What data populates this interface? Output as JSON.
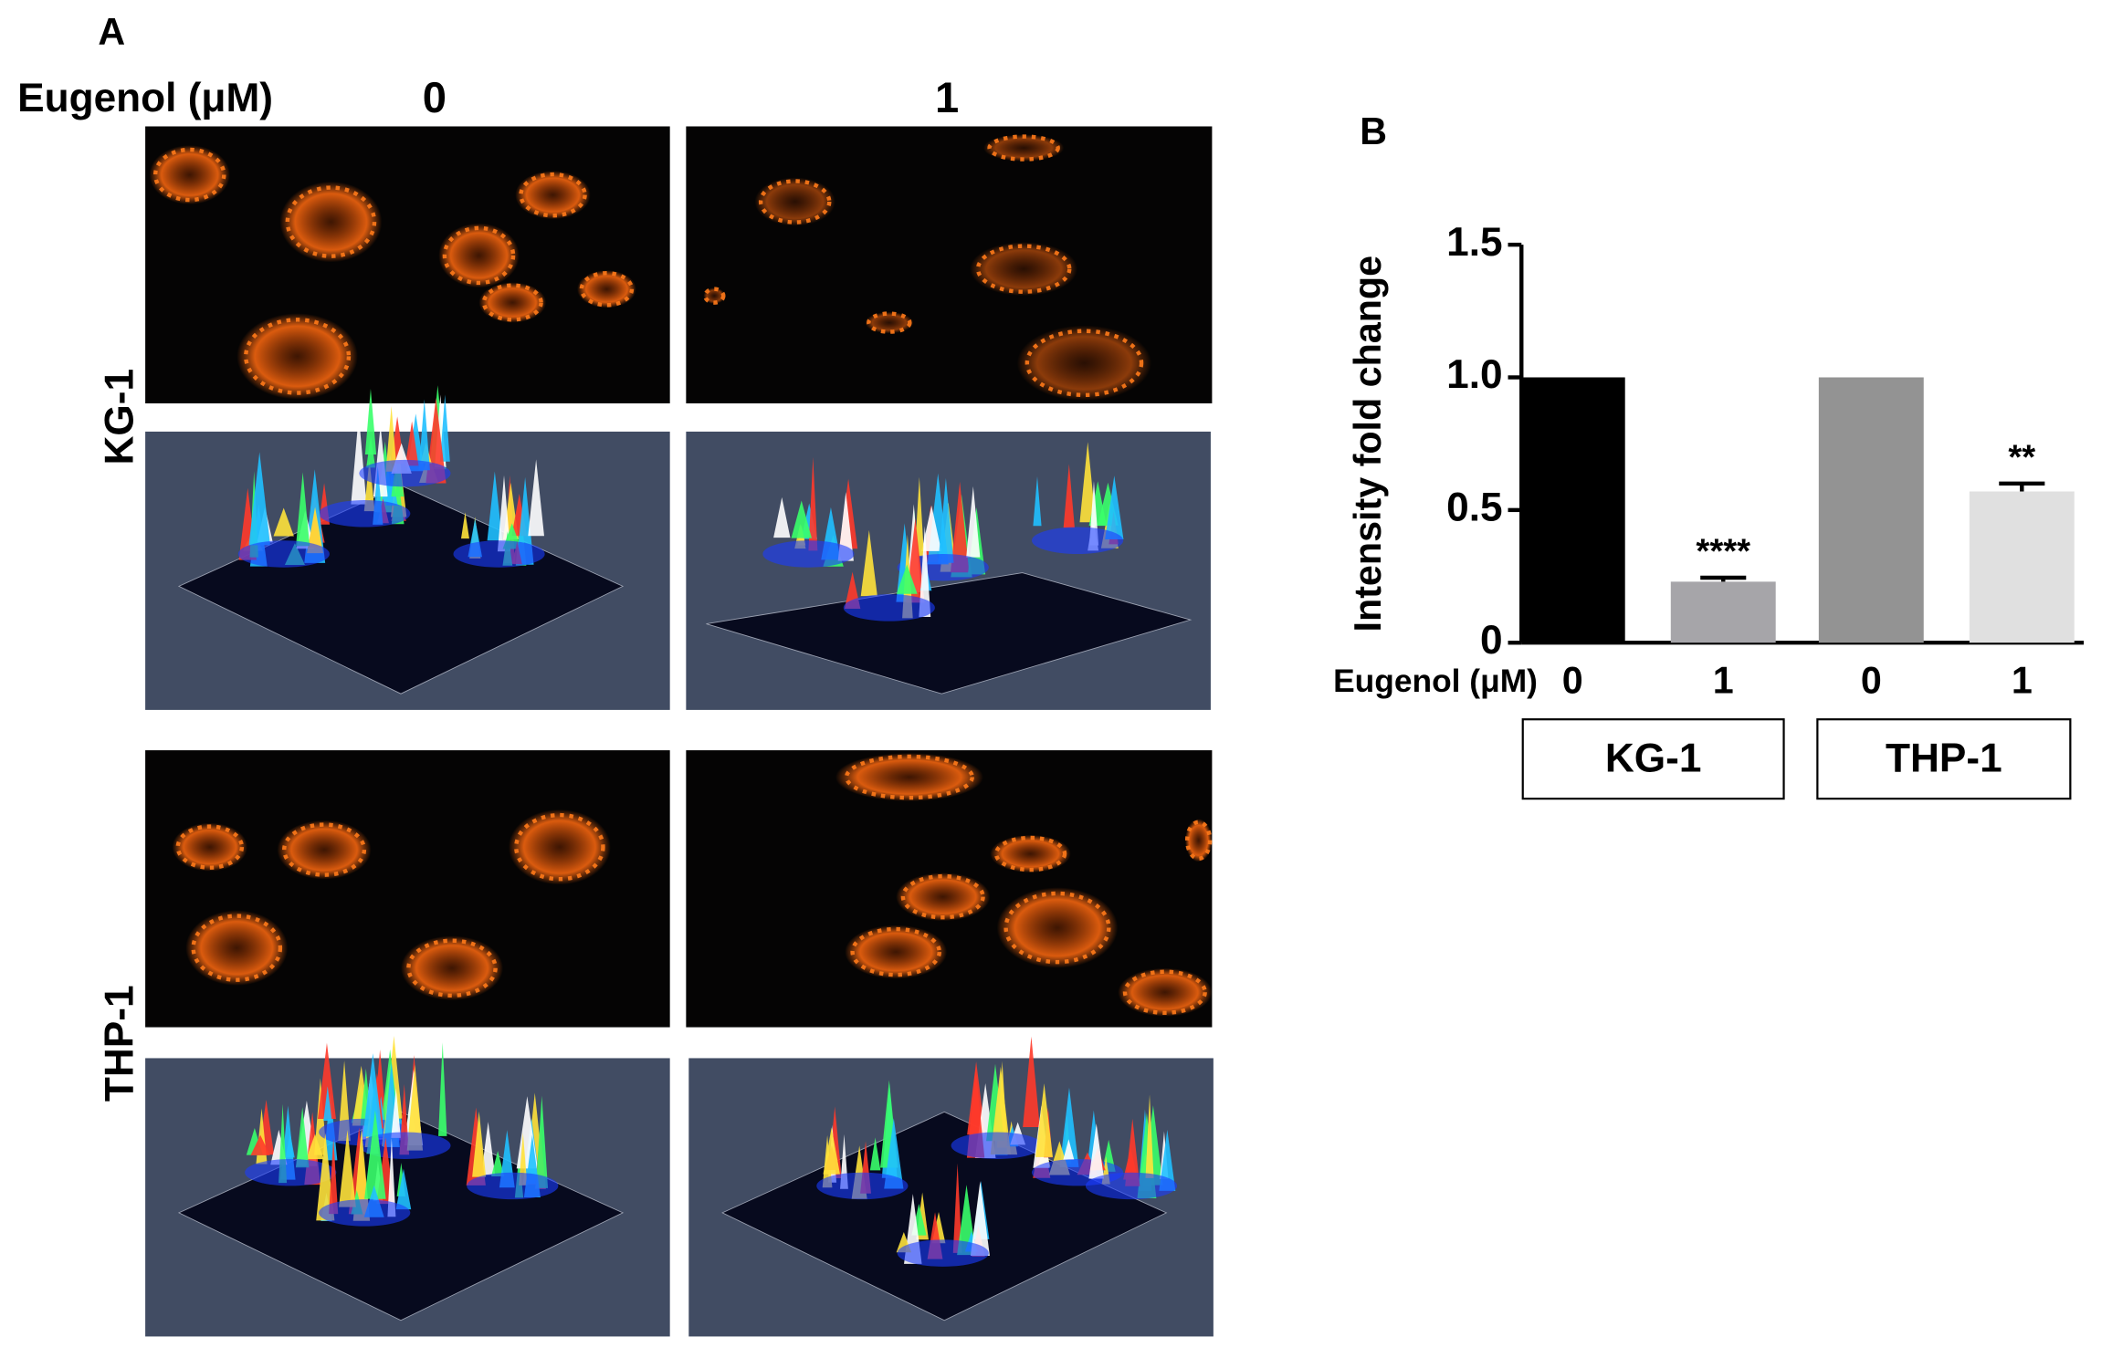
{
  "panel_a": {
    "label": "A",
    "x_label": "Eugenol (μM)",
    "columns": [
      "0",
      "1"
    ],
    "rows": [
      "KG-1",
      "THP-1"
    ]
  },
  "chart_data": {
    "type": "bar",
    "label": "B",
    "y_label": "Intensity fold change",
    "x_label": "Eugenol (μM)",
    "categories": [
      "0",
      "1",
      "0",
      "1"
    ],
    "values": [
      1.0,
      0.23,
      1.0,
      0.57
    ],
    "errors": [
      null,
      0.015,
      null,
      0.03
    ],
    "annotations": [
      null,
      "****",
      null,
      "**"
    ],
    "colors": [
      "#000000",
      "#a6a5a9",
      "#939393",
      "#e0e0e0"
    ],
    "group_labels": [
      "KG-1",
      "THP-1"
    ],
    "ylim": [
      0,
      1.5
    ],
    "yticks": [
      0,
      0.5,
      {
        "value": 1,
        "label": "1.0"
      },
      1.5
    ]
  }
}
